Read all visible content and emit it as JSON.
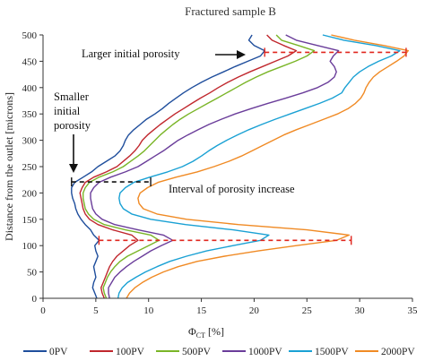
{
  "chart_data": {
    "type": "line",
    "title": "Fractured sample  B",
    "xlabel": "Φ",
    "xlabel_sub": "CT",
    "xlabel_unit": " [%]",
    "ylabel": "Distance from the outlet [microns]",
    "xlim": [
      0,
      35
    ],
    "ylim": [
      0,
      500
    ],
    "xticks": [
      0,
      5,
      10,
      15,
      20,
      25,
      30,
      35
    ],
    "yticks": [
      0,
      50,
      100,
      150,
      200,
      250,
      300,
      350,
      400,
      450,
      500
    ],
    "grid": false,
    "legend_position": "bottom",
    "y": [
      0,
      10,
      20,
      30,
      40,
      50,
      60,
      70,
      80,
      90,
      100,
      110,
      120,
      130,
      140,
      150,
      160,
      170,
      180,
      190,
      200,
      210,
      220,
      230,
      240,
      250,
      260,
      270,
      280,
      290,
      300,
      310,
      320,
      330,
      340,
      350,
      360,
      370,
      380,
      390,
      400,
      410,
      420,
      430,
      440,
      450,
      460,
      470,
      480,
      490,
      500
    ],
    "series": [
      {
        "name": "0PV",
        "color": "#1f4e9c",
        "values": [
          5.1,
          4.9,
          4.7,
          4.8,
          5.0,
          4.9,
          4.8,
          5.0,
          5.2,
          5.0,
          4.9,
          5.3,
          4.8,
          4.5,
          4.0,
          3.6,
          3.3,
          3.1,
          3.0,
          2.8,
          2.7,
          2.7,
          3.0,
          3.8,
          4.6,
          5.2,
          6.0,
          6.8,
          7.3,
          7.6,
          7.8,
          8.1,
          8.6,
          9.2,
          9.8,
          10.6,
          11.3,
          11.9,
          12.6,
          13.3,
          14.1,
          15.0,
          16.0,
          17.1,
          18.2,
          19.4,
          20.6,
          21.0,
          20.0,
          19.5,
          19.8
        ]
      },
      {
        "name": "100PV",
        "color": "#c0272d",
        "values": [
          5.8,
          5.6,
          5.5,
          5.7,
          5.9,
          6.1,
          6.3,
          6.6,
          7.0,
          7.6,
          8.2,
          9.0,
          8.4,
          6.6,
          5.2,
          4.4,
          4.0,
          3.8,
          3.7,
          3.6,
          3.5,
          3.7,
          4.0,
          4.8,
          6.0,
          7.0,
          7.6,
          8.2,
          8.7,
          9.1,
          9.4,
          9.9,
          10.5,
          11.1,
          11.8,
          12.5,
          13.3,
          14.1,
          14.9,
          15.8,
          16.6,
          17.5,
          18.5,
          19.6,
          20.8,
          22.0,
          23.2,
          24.0,
          22.8,
          21.7,
          21.2
        ]
      },
      {
        "name": "500PV",
        "color": "#7ab527",
        "values": [
          6.0,
          5.8,
          5.7,
          5.9,
          6.1,
          6.4,
          6.8,
          7.3,
          8.0,
          9.0,
          10.0,
          11.0,
          10.2,
          7.8,
          5.8,
          4.8,
          4.3,
          4.0,
          3.9,
          3.8,
          3.8,
          4.0,
          4.4,
          5.3,
          6.6,
          7.6,
          8.3,
          9.0,
          9.6,
          10.1,
          10.6,
          11.1,
          11.7,
          12.3,
          13.0,
          13.8,
          14.7,
          15.6,
          16.5,
          17.4,
          18.3,
          19.2,
          20.2,
          21.3,
          22.6,
          23.9,
          25.0,
          25.7,
          24.2,
          22.6,
          22.1
        ]
      },
      {
        "name": "1000PV",
        "color": "#6a3d9a",
        "values": [
          6.3,
          6.2,
          6.2,
          6.5,
          6.8,
          7.3,
          7.9,
          8.6,
          9.4,
          10.2,
          11.2,
          12.3,
          11.4,
          9.0,
          6.8,
          5.6,
          5.0,
          4.7,
          4.6,
          4.5,
          4.5,
          4.8,
          5.3,
          6.4,
          7.8,
          9.0,
          9.8,
          10.6,
          11.4,
          12.1,
          12.8,
          13.7,
          14.7,
          15.7,
          16.9,
          18.2,
          19.7,
          21.3,
          23.0,
          24.6,
          26.0,
          27.0,
          27.6,
          27.8,
          27.6,
          27.2,
          27.5,
          28.0,
          26.0,
          24.0,
          23.0
        ]
      },
      {
        "name": "1500PV",
        "color": "#1aa1d4",
        "values": [
          7.1,
          7.2,
          7.5,
          8.0,
          8.8,
          9.7,
          10.8,
          12.0,
          13.6,
          15.5,
          18.0,
          20.6,
          21.4,
          18.0,
          13.5,
          10.2,
          8.4,
          7.6,
          7.3,
          7.2,
          7.3,
          7.8,
          8.6,
          10.1,
          11.8,
          13.2,
          14.2,
          15.0,
          15.7,
          16.5,
          17.4,
          18.4,
          19.5,
          20.7,
          22.0,
          23.4,
          24.8,
          26.2,
          27.4,
          28.3,
          28.6,
          29.0,
          29.4,
          30.0,
          30.8,
          31.8,
          33.0,
          33.8,
          31.5,
          28.5,
          26.5
        ]
      },
      {
        "name": "2000PV",
        "color": "#f08a24",
        "values": [
          7.9,
          8.2,
          8.7,
          9.4,
          10.3,
          11.4,
          12.8,
          14.6,
          17.2,
          20.4,
          24.0,
          27.8,
          29.0,
          25.0,
          18.5,
          13.6,
          10.8,
          9.5,
          9.1,
          9.0,
          9.2,
          9.9,
          10.9,
          12.6,
          14.6,
          16.2,
          17.6,
          18.8,
          19.8,
          20.8,
          21.8,
          22.8,
          24.0,
          25.3,
          26.6,
          27.9,
          28.9,
          29.6,
          30.1,
          30.4,
          30.6,
          30.9,
          31.3,
          31.9,
          32.7,
          33.5,
          34.2,
          34.6,
          32.3,
          29.5,
          27.3
        ]
      }
    ],
    "annotations": {
      "larger": "Larger initial porosity",
      "smaller_1": "Smaller",
      "smaller_2": "initial",
      "smaller_3": "porosity",
      "interval": "Interval of porosity increase"
    },
    "guides": [
      {
        "kind": "dashed",
        "color": "#e0261e",
        "y": 467,
        "x1": 21.0,
        "x2": 34.4
      },
      {
        "kind": "dashed",
        "color": "#e0261e",
        "y": 110,
        "x1": 5.3,
        "x2": 29.2
      },
      {
        "kind": "dashed",
        "color": "#111111",
        "y": 221,
        "x1": 2.7,
        "x2": 10.2
      }
    ]
  }
}
